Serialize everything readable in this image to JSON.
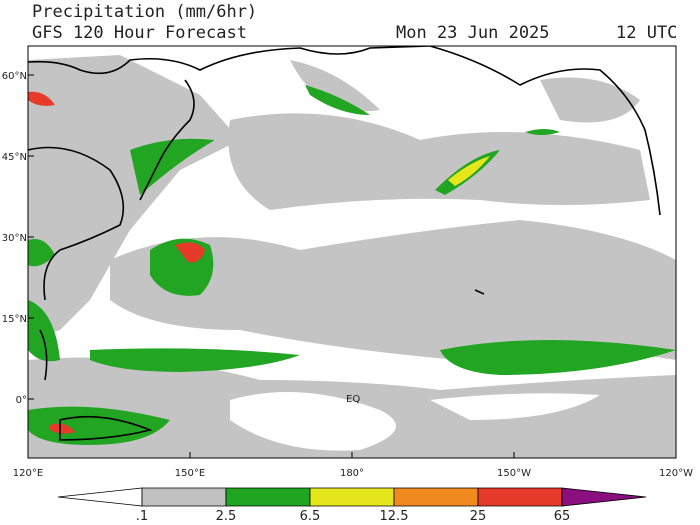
{
  "header": {
    "title": "Precipitation (mm/6hr)",
    "subtitle": "GFS 120 Hour Forecast",
    "date": "Mon 23 Jun 2025",
    "time": "12 UTC"
  },
  "map": {
    "lat_labels": [
      "60°N",
      "45°N",
      "30°N",
      "15°N",
      "0°"
    ],
    "lon_labels": [
      "120°E",
      "150°E",
      "180°",
      "150°W",
      "120°W"
    ],
    "equator_label": "EQ"
  },
  "colorbar": {
    "labels": [
      ".1",
      "2.5",
      "6.5",
      "12.5",
      "25",
      "65"
    ],
    "colors": [
      "#ffffff",
      "#c0c0c0",
      "#1fa51f",
      "#e6e61c",
      "#f08a1e",
      "#e63a2a",
      "#8c0f80"
    ]
  }
}
